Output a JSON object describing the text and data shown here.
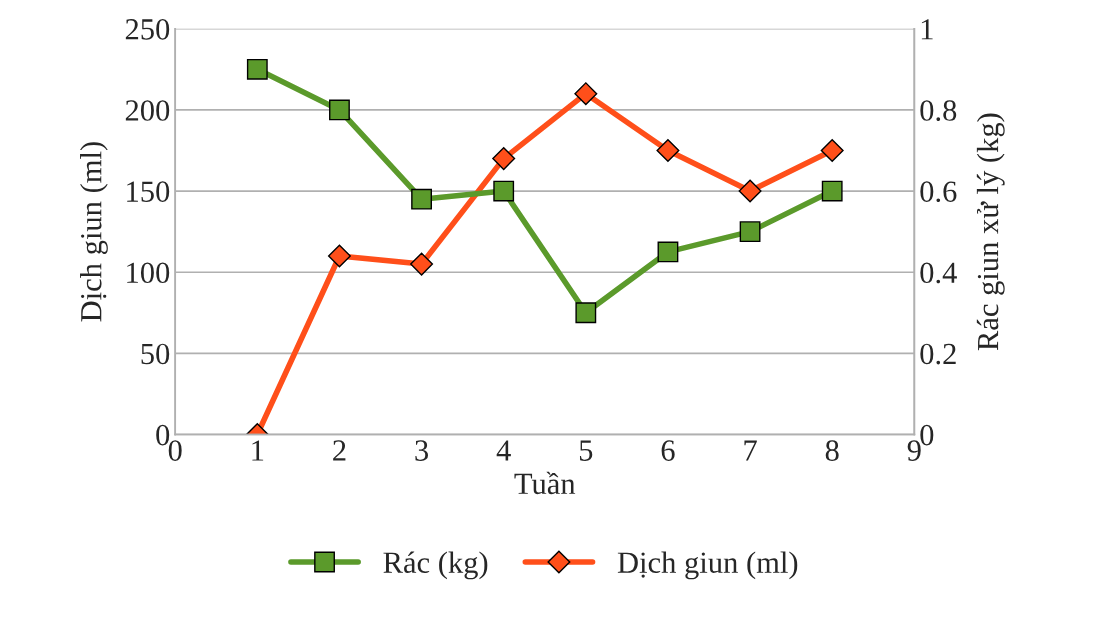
{
  "chart_data": {
    "type": "line",
    "xlabel": "Tuần",
    "ylabel": "Dịch giun (ml)",
    "y2label": "Rác giun xử lý (kg)",
    "x": [
      1,
      2,
      3,
      4,
      5,
      6,
      7,
      8
    ],
    "series": [
      {
        "name": "Rác (kg)",
        "color": "#5b9a2b",
        "marker": "square",
        "axis": "y2",
        "values": [
          0.9,
          0.8,
          0.58,
          0.6,
          0.3,
          0.45,
          0.5,
          0.6
        ]
      },
      {
        "name": "Dịch giun (ml)",
        "color": "#ff4f1a",
        "marker": "diamond",
        "values": [
          0,
          110,
          105,
          170,
          210,
          175,
          150,
          175
        ]
      }
    ],
    "xlim": [
      0,
      9
    ],
    "xticks": [
      0,
      1,
      2,
      3,
      4,
      5,
      6,
      7,
      8,
      9
    ],
    "ylim": [
      0,
      250
    ],
    "yticks": [
      0,
      50,
      100,
      150,
      200,
      250
    ],
    "y2lim": [
      0,
      1
    ],
    "y2ticks": [
      0,
      0.2,
      0.4,
      0.6,
      0.8,
      1
    ],
    "grid": "y",
    "legend": "bottom"
  }
}
